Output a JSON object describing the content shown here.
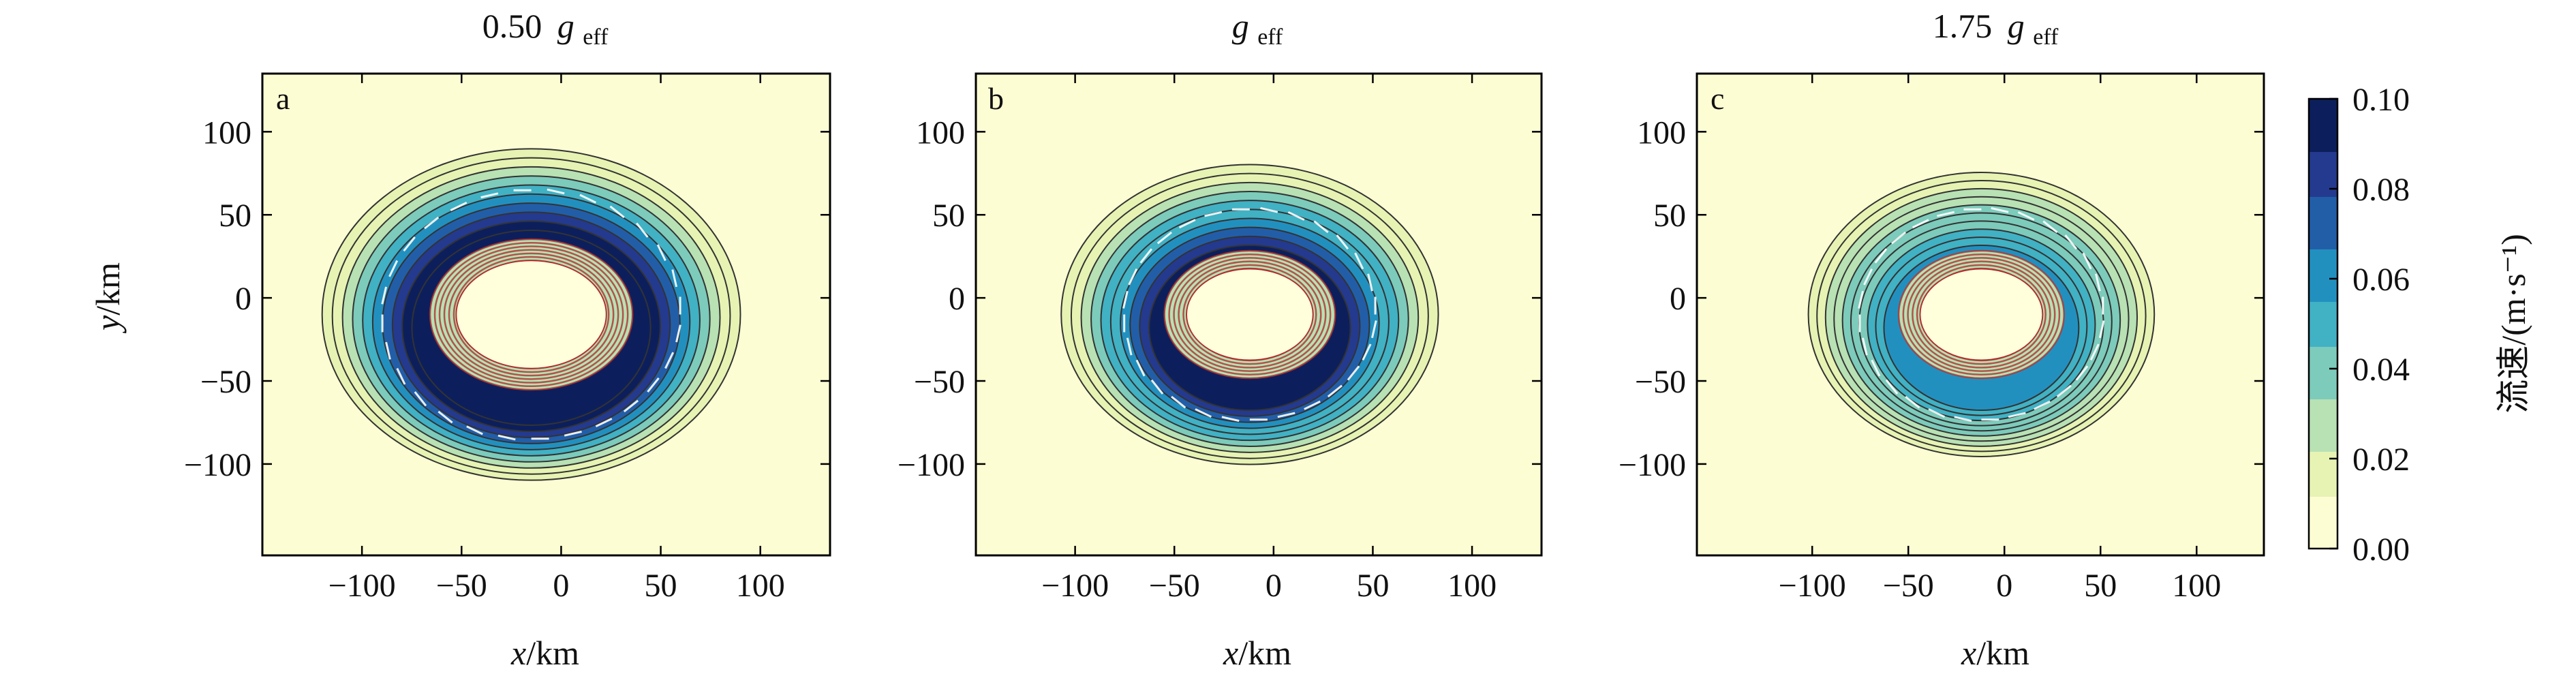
{
  "chart_data": [
    {
      "panel": "a",
      "type": "heatmap",
      "title_prefix": "0.50",
      "title_symbol": "g",
      "title_sub": "eff",
      "xlabel_var": "x",
      "xlabel_unit": "/km",
      "ylabel_var": "y",
      "ylabel_unit": "/km",
      "xlim": [
        -150,
        135
      ],
      "ylim": [
        -155,
        135
      ],
      "xticks": [
        -100,
        -50,
        0,
        50,
        100
      ],
      "yticks": [
        -100,
        -50,
        0,
        50,
        100
      ],
      "tick_labels_x": [
        "−100",
        "−50",
        "0",
        "50",
        "100"
      ],
      "tick_labels_y": [
        "−100",
        "−50",
        "0",
        "50",
        "100"
      ],
      "vortex_center": [
        -15,
        -10
      ],
      "ring_speed_max": 0.1,
      "ring_radius_peak_km": 65,
      "outer_contour_km": 105
    },
    {
      "panel": "b",
      "type": "heatmap",
      "title_prefix": "",
      "title_symbol": "g",
      "title_sub": "eff",
      "xlabel_var": "x",
      "xlabel_unit": "/km",
      "xlim": [
        -150,
        135
      ],
      "ylim": [
        -155,
        135
      ],
      "xticks": [
        -100,
        -50,
        0,
        50,
        100
      ],
      "yticks": [
        -100,
        -50,
        0,
        50,
        100
      ],
      "tick_labels_x": [
        "−100",
        "−50",
        "0",
        "50",
        "100"
      ],
      "tick_labels_y": [
        "−100",
        "−50",
        "0",
        "50",
        "100"
      ],
      "vortex_center": [
        -12,
        -10
      ],
      "ring_speed_max": 0.09,
      "ring_radius_peak_km": 55,
      "outer_contour_km": 95
    },
    {
      "panel": "c",
      "type": "heatmap",
      "title_prefix": "1.75",
      "title_symbol": "g",
      "title_sub": "eff",
      "xlabel_var": "x",
      "xlabel_unit": "/km",
      "xlim": [
        -160,
        135
      ],
      "ylim": [
        -155,
        135
      ],
      "xticks": [
        -100,
        -50,
        0,
        50,
        100
      ],
      "yticks": [
        -100,
        -50,
        0,
        50,
        100
      ],
      "tick_labels_x": [
        "−100",
        "−50",
        "0",
        "50",
        "100"
      ],
      "tick_labels_y": [
        "−100",
        "−50",
        "0",
        "50",
        "100"
      ],
      "vortex_center": [
        -12,
        -10
      ],
      "ring_speed_max": 0.06,
      "ring_radius_peak_km": 55,
      "outer_contour_km": 90
    }
  ],
  "colorbar": {
    "label": "流速/(m·s⁻¹)",
    "ticks": [
      "0.00",
      "0.02",
      "0.04",
      "0.06",
      "0.08",
      "0.10"
    ],
    "range": [
      0.0,
      0.1
    ],
    "colors": [
      "#fdfdd4",
      "#e6f3b3",
      "#b8e1b4",
      "#7ccbbb",
      "#41b1c4",
      "#2290bf",
      "#225ea8",
      "#243a8f",
      "#0c1f5c"
    ]
  },
  "colors": {
    "vortex_core": "#ffffdc",
    "core_contours": "#b03030",
    "arrows": "#ffffff",
    "frame": "#000000"
  }
}
